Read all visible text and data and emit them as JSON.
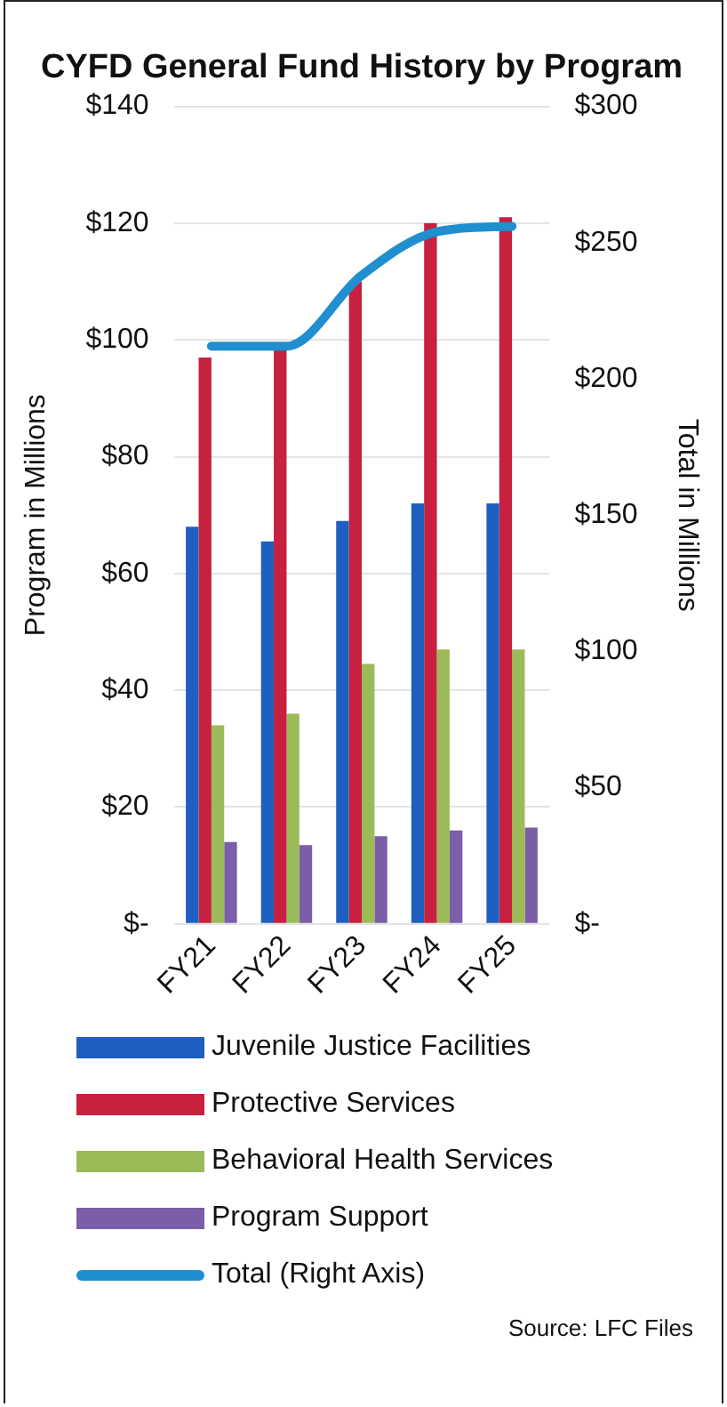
{
  "chart_data": {
    "type": "bar",
    "title": "CYFD General Fund History by Program",
    "ylabel": "Program in Millions",
    "y2label": "Total in Millions",
    "categories": [
      "FY21",
      "FY22",
      "FY23",
      "FY24",
      "FY25"
    ],
    "series": [
      {
        "name": "Juvenile Justice Facilities",
        "color": "#1f5fbf",
        "values": [
          68,
          65.5,
          69,
          72,
          72
        ]
      },
      {
        "name": "Protective Services",
        "color": "#c8203f",
        "values": [
          97,
          99,
          110,
          120,
          121
        ]
      },
      {
        "name": "Behavioral Health Services",
        "color": "#9bbb59",
        "values": [
          34,
          36,
          44.5,
          47,
          47
        ]
      },
      {
        "name": "Program Support",
        "color": "#7a5ea8",
        "values": [
          14,
          13.5,
          15,
          16,
          16.5
        ]
      },
      {
        "name": "Total (Right Axis)",
        "color": "#1f8fd0",
        "type": "line",
        "axis": "y2",
        "values": [
          212,
          212,
          238,
          254,
          256
        ]
      }
    ],
    "ylim": [
      0,
      140
    ],
    "yticks": [
      {
        "value": 0,
        "label": "$-"
      },
      {
        "value": 20,
        "label": "$20"
      },
      {
        "value": 40,
        "label": "$40"
      },
      {
        "value": 60,
        "label": "$60"
      },
      {
        "value": 80,
        "label": "$80"
      },
      {
        "value": 100,
        "label": "$100"
      },
      {
        "value": 120,
        "label": "$120"
      },
      {
        "value": 140,
        "label": "$140"
      }
    ],
    "y2lim": [
      0,
      300
    ],
    "y2ticks": [
      {
        "value": 0,
        "label": "$-"
      },
      {
        "value": 50,
        "label": "$50"
      },
      {
        "value": 100,
        "label": "$100"
      },
      {
        "value": 150,
        "label": "$150"
      },
      {
        "value": 200,
        "label": "$200"
      },
      {
        "value": 250,
        "label": "$250"
      },
      {
        "value": 300,
        "label": "$300"
      }
    ],
    "grid": "y",
    "legend": "bottom",
    "marker": "none",
    "annotations": [
      "Source: LFC Files"
    ]
  }
}
